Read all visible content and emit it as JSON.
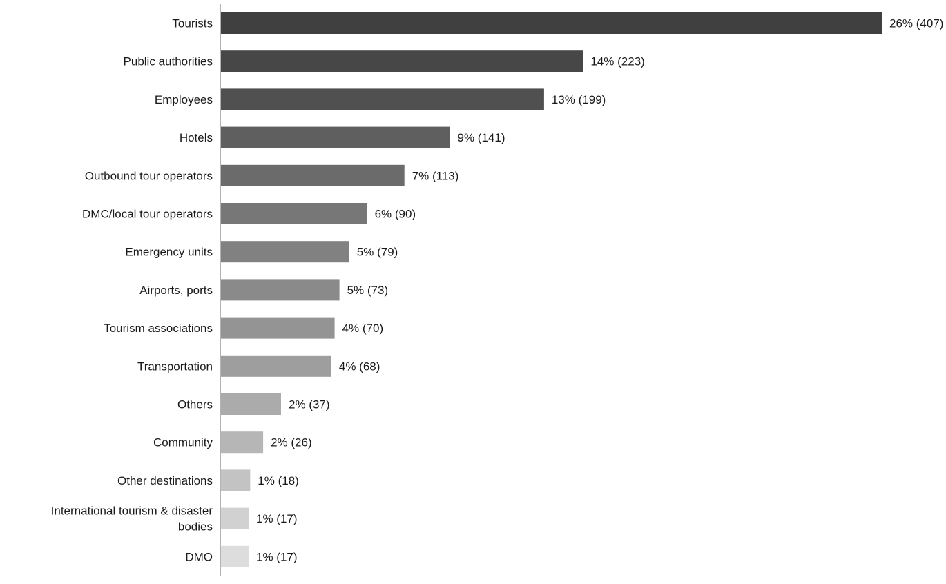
{
  "chart_data": {
    "type": "bar",
    "orientation": "horizontal",
    "categories": [
      "Tourists",
      "Public authorities",
      "Employees",
      "Hotels",
      "Outbound tour operators",
      "DMC/local tour operators",
      "Emergency units",
      "Airports, ports",
      "Tourism associations",
      "Transportation",
      "Others",
      "Community",
      "Other destinations",
      "International tourism & disaster bodies",
      "DMO"
    ],
    "values": [
      407,
      223,
      199,
      141,
      113,
      90,
      79,
      73,
      70,
      68,
      37,
      26,
      18,
      17,
      17
    ],
    "data_labels": [
      "26% (407)",
      "14% (223)",
      "13% (199)",
      "9% (141)",
      "7% (113)",
      "6% (90)",
      "5% (79)",
      "5% (73)",
      "4% (70)",
      "4% (68)",
      "2% (37)",
      "2% (26)",
      "1% (18)",
      "1% (17)",
      "1% (17)"
    ],
    "colors": [
      "#404040",
      "#474747",
      "#505050",
      "#5f5f5f",
      "#6b6b6b",
      "#777777",
      "#818181",
      "#8a8a8a",
      "#949494",
      "#9e9e9e",
      "#ababab",
      "#b6b6b6",
      "#c3c3c3",
      "#d1d1d1",
      "#dddddd"
    ],
    "title": "",
    "xlabel": "",
    "ylabel": "",
    "xlim": [
      0,
      407
    ],
    "grid": false,
    "legend": "none"
  }
}
